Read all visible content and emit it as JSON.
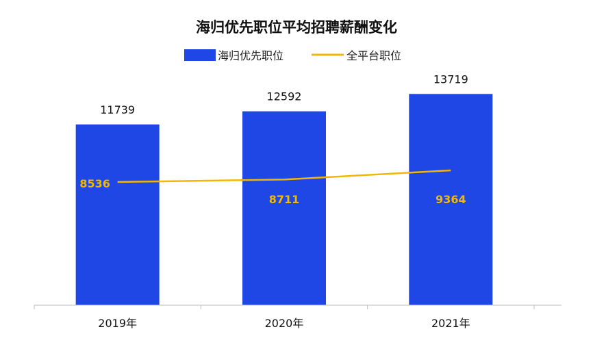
{
  "chart_data": {
    "type": "bar",
    "title": "海归优先职位平均招聘薪酬变化",
    "categories": [
      "2019年",
      "2020年",
      "2021年"
    ],
    "series": [
      {
        "name": "海归优先职位",
        "type": "bar",
        "values": [
          11739,
          12592,
          13719
        ],
        "color": "#1f47e6"
      },
      {
        "name": "全平台职位",
        "type": "line",
        "values": [
          8536,
          8711,
          9364
        ],
        "color": "#f2b705"
      }
    ],
    "ylim": [
      0,
      16000
    ],
    "grid": false,
    "legend": "top-center",
    "xlabel": "",
    "ylabel": ""
  }
}
